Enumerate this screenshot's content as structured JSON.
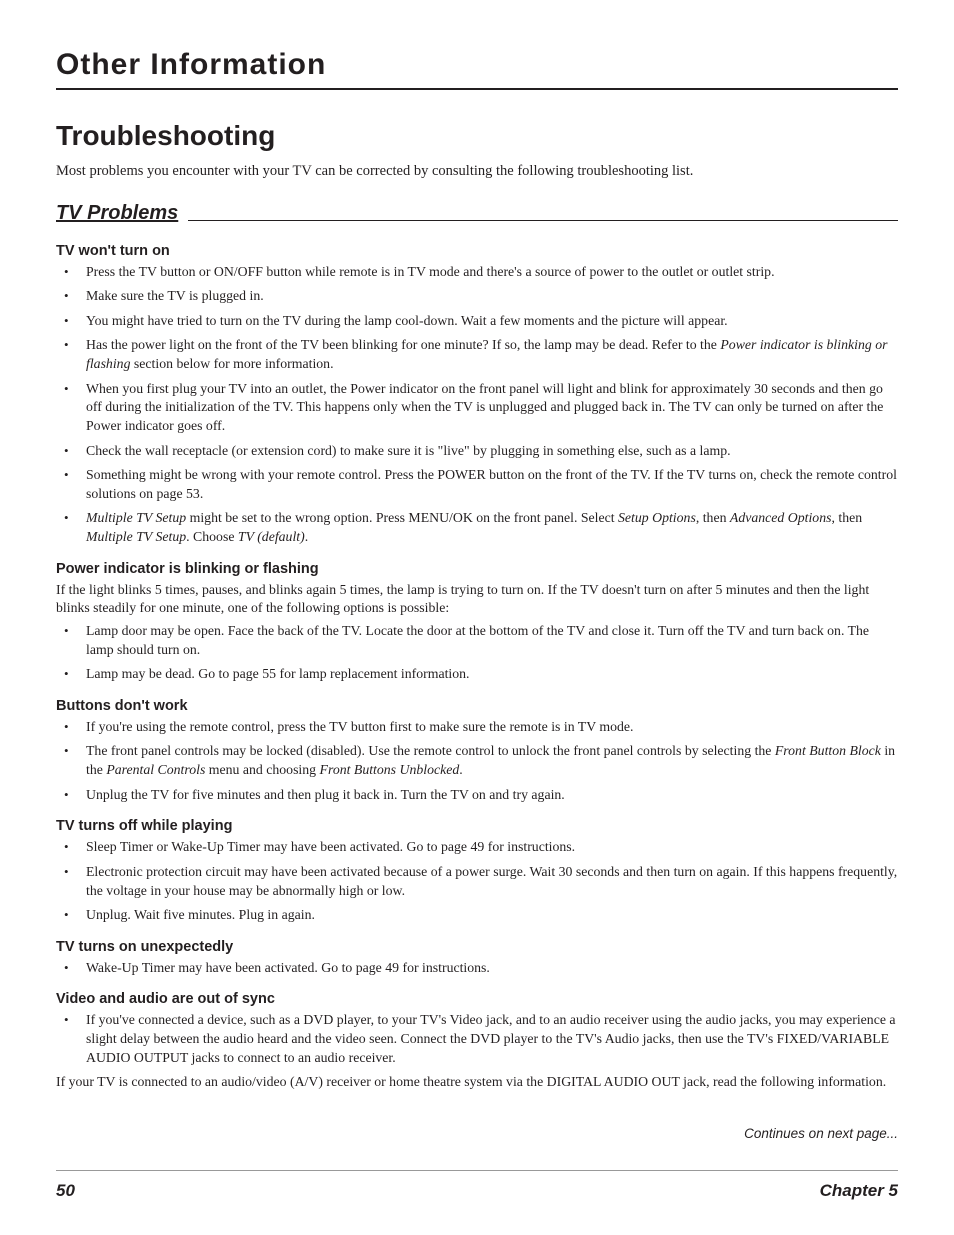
{
  "chapter_heading": "Other Information",
  "page_title": "Troubleshooting",
  "intro": "Most problems you encounter with your TV can be corrected by consulting the following troubleshooting list.",
  "section_title": "TV Problems",
  "problems": {
    "p1": {
      "heading": "TV won't turn on",
      "b1": "Press the TV button or ON/OFF button while remote is in TV mode and there's a source of power to the outlet or outlet strip.",
      "b2": "Make sure the TV is plugged in.",
      "b3": "You might have tried to turn on the TV during the lamp cool-down. Wait a few moments and the picture will appear.",
      "b4_a": "Has the power light on the front of the TV been blinking for one minute? If so, the lamp may be dead. Refer to the ",
      "b4_i": "Power indicator is blinking or flashing",
      "b4_b": " section below for more information.",
      "b5": "When you first plug your TV into an outlet, the Power indicator on the front panel will light and blink for approximately 30 seconds and then go off during the initialization of the TV. This happens only when the TV is unplugged and plugged back in. The TV can only be turned on after the Power indicator goes off.",
      "b6": "Check the wall receptacle (or extension cord) to make sure it is \"live\" by plugging in something else, such as a lamp.",
      "b7": "Something might be wrong with your remote control. Press the POWER button on the front of the TV. If the TV turns on, check the remote control solutions on page 53.",
      "b8_i1": "Multiple TV Setup",
      "b8_a": " might be set to the wrong option. Press MENU/OK on the front panel. Select ",
      "b8_i2": "Setup Options",
      "b8_b": ", then ",
      "b8_i3": "Advanced Options",
      "b8_c": ", then ",
      "b8_i4": "Multiple TV Setup",
      "b8_d": ". Choose ",
      "b8_i5": "TV (default)",
      "b8_e": "."
    },
    "p2": {
      "heading": "Power indicator is blinking or flashing",
      "para": "If the light blinks 5 times, pauses, and blinks again 5 times, the lamp is trying to turn on. If the TV doesn't turn on after 5 minutes and then the light blinks steadily for one minute, one of the following options is possible:",
      "b1": "Lamp door may be open. Face the back of the TV. Locate the door at the bottom of the TV and close it. Turn off the TV and turn back on. The lamp should turn on.",
      "b2": "Lamp may be dead. Go to page 55 for lamp replacement information."
    },
    "p3": {
      "heading": "Buttons don't work",
      "b1": "If you're using the remote control, press the TV button first to make sure the remote is in TV mode.",
      "b2_a": "The front panel controls may be locked (disabled). Use the remote control to unlock the front panel controls by selecting the ",
      "b2_i1": "Front Button Block",
      "b2_b": " in the ",
      "b2_i2": "Parental Controls",
      "b2_c": " menu and choosing ",
      "b2_i3": "Front Buttons Unblocked",
      "b2_d": ".",
      "b3": "Unplug the TV for five minutes and then plug it back in. Turn the TV on and try again."
    },
    "p4": {
      "heading": "TV turns off while playing",
      "b1": "Sleep Timer or Wake-Up Timer may have been activated. Go to page 49 for instructions.",
      "b2": "Electronic protection circuit may have been activated because of a power surge. Wait 30 seconds and then turn on again. If this happens frequently, the voltage in your house may be abnormally high or low.",
      "b3": "Unplug. Wait five minutes. Plug in again."
    },
    "p5": {
      "heading": "TV turns on unexpectedly",
      "b1": "Wake-Up Timer may have been activated. Go to page 49 for instructions."
    },
    "p6": {
      "heading": "Video and audio are out of sync",
      "b1": "If you've connected a device, such as a DVD player, to your TV's Video jack, and to an audio receiver using the audio jacks, you may experience a slight delay between the audio heard and the video seen. Connect the DVD player to the TV's Audio jacks, then use the TV's FIXED/VARIABLE AUDIO OUTPUT jacks to connect to an audio receiver.",
      "para": "If your TV is connected to an audio/video (A/V) receiver or home theatre system via the DIGITAL AUDIO OUT jack, read the following information."
    }
  },
  "continues": "Continues on next page...",
  "footer": {
    "page": "50",
    "chapter": "Chapter 5"
  }
}
